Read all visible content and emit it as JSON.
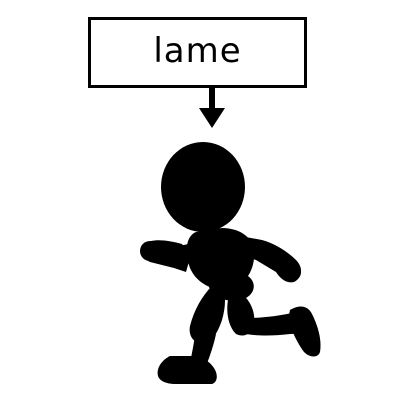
{
  "label": {
    "text": "lame"
  },
  "colors": {
    "ink": "#000000",
    "background": "#ffffff"
  },
  "icons": {
    "pointer": "arrow-down-icon",
    "figure": "running-figure-silhouette"
  }
}
